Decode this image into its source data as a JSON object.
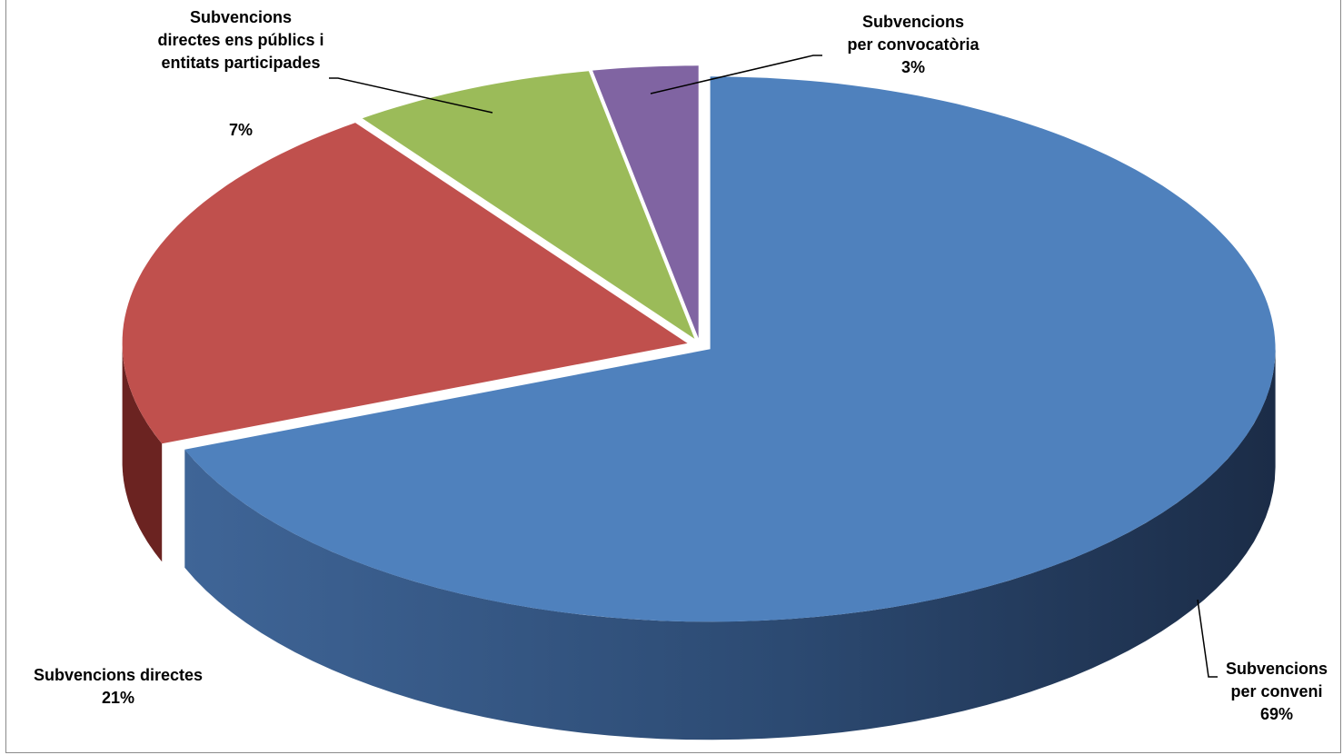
{
  "chart_data": {
    "type": "pie",
    "is_3d": true,
    "exploded": true,
    "title": "",
    "slices": [
      {
        "label_lines": [
          "Subvencions",
          "per conveni"
        ],
        "percent_label": "69%",
        "value": 69,
        "color": "#4F81BD",
        "side_color": "#2A4463"
      },
      {
        "label_lines": [
          "Subvencions directes"
        ],
        "percent_label": "21%",
        "value": 21,
        "color": "#C0504D",
        "side_color": "#6B2321"
      },
      {
        "label_lines": [
          "Subvencions",
          "directes ens públics i",
          "entitats participades"
        ],
        "percent_label": "7%",
        "value": 7,
        "color": "#9BBB59",
        "side_color": "#4A5C25"
      },
      {
        "label_lines": [
          "Subvencions",
          "per convocatòria"
        ],
        "percent_label": "3%",
        "value": 3,
        "color": "#8064A2",
        "side_color": "#3F2F55"
      }
    ]
  }
}
